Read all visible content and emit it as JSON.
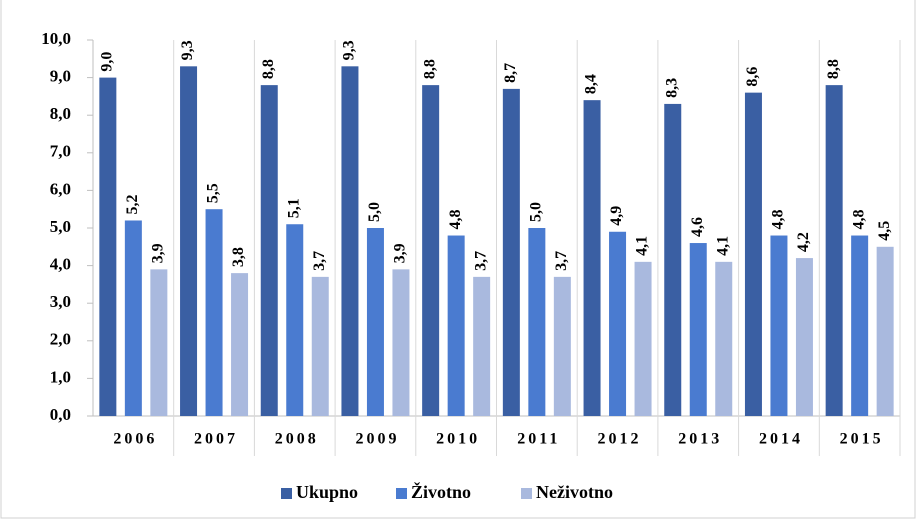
{
  "chart_data": {
    "type": "bar",
    "categories": [
      "2006",
      "2007",
      "2008",
      "2009",
      "2010",
      "2011",
      "2012",
      "2013",
      "2014",
      "2015"
    ],
    "series": [
      {
        "name": "Ukupno",
        "color": "#3a5fa3",
        "values": [
          9.0,
          9.3,
          8.8,
          9.3,
          8.8,
          8.7,
          8.4,
          8.3,
          8.6,
          8.8
        ],
        "value_labels": [
          "9,0",
          "9,3",
          "8,8",
          "9,3",
          "8,8",
          "8,7",
          "8,4",
          "8,3",
          "8,6",
          "8,8"
        ]
      },
      {
        "name": "Životno",
        "color": "#4a7bd0",
        "values": [
          5.2,
          5.5,
          5.1,
          5.0,
          4.8,
          5.0,
          4.9,
          4.6,
          4.8,
          4.8
        ],
        "value_labels": [
          "5,2",
          "5,5",
          "5,1",
          "5,0",
          "4,8",
          "5,0",
          "4,9",
          "4,6",
          "4,8",
          "4,8"
        ]
      },
      {
        "name": "Neživotno",
        "color": "#a9b9de",
        "values": [
          3.9,
          3.8,
          3.7,
          3.9,
          3.7,
          3.7,
          4.1,
          4.1,
          4.2,
          4.5
        ],
        "value_labels": [
          "3,9",
          "3,8",
          "3,7",
          "3,9",
          "3,7",
          "3,7",
          "4,1",
          "4,1",
          "4,2",
          "4,5"
        ]
      }
    ],
    "ylim": [
      0,
      10
    ],
    "yticks": [
      {
        "value": 0,
        "label": "0,0"
      },
      {
        "value": 1,
        "label": "1,0"
      },
      {
        "value": 2,
        "label": "2,0"
      },
      {
        "value": 3,
        "label": "3,0"
      },
      {
        "value": 4,
        "label": "4,0"
      },
      {
        "value": 5,
        "label": "5,0"
      },
      {
        "value": 6,
        "label": "6,0"
      },
      {
        "value": 7,
        "label": "7,0"
      },
      {
        "value": 8,
        "label": "8,0"
      },
      {
        "value": 9,
        "label": "9,0"
      },
      {
        "value": 10,
        "label": "10,0"
      }
    ],
    "legend": "bottom"
  }
}
